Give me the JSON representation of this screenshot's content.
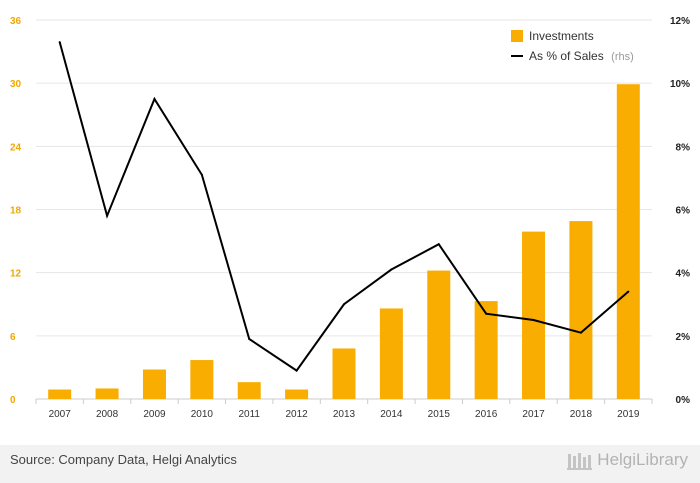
{
  "chart_data": {
    "type": "bar",
    "categories": [
      "2007",
      "2008",
      "2009",
      "2010",
      "2011",
      "2012",
      "2013",
      "2014",
      "2015",
      "2016",
      "2017",
      "2018",
      "2019"
    ],
    "series": [
      {
        "name": "Investments",
        "axis": "left",
        "type": "bar",
        "color": "#f9ad00",
        "values": [
          0.9,
          1.0,
          2.8,
          3.7,
          1.6,
          0.9,
          4.8,
          8.6,
          12.2,
          9.3,
          15.9,
          16.9,
          29.9
        ]
      },
      {
        "name": "As % of Sales",
        "note": "(rhs)",
        "axis": "right",
        "type": "line",
        "color": "#000000",
        "values": [
          11.3,
          5.8,
          9.5,
          7.1,
          1.9,
          0.9,
          3.0,
          4.1,
          4.9,
          2.7,
          2.5,
          2.1,
          3.4
        ]
      }
    ],
    "left_axis": {
      "ylim": [
        0,
        36
      ],
      "ticks": [
        "0",
        "6",
        "12",
        "18",
        "24",
        "30",
        "36"
      ]
    },
    "right_axis": {
      "ylim": [
        0,
        12
      ],
      "ticks": [
        "0%",
        "2%",
        "4%",
        "6%",
        "8%",
        "10%",
        "12%"
      ]
    },
    "grid": true,
    "legend_position": "top-right"
  },
  "footer": {
    "source": "Source: Company Data, Helgi Analytics",
    "brand": "HelgiLibrary"
  }
}
